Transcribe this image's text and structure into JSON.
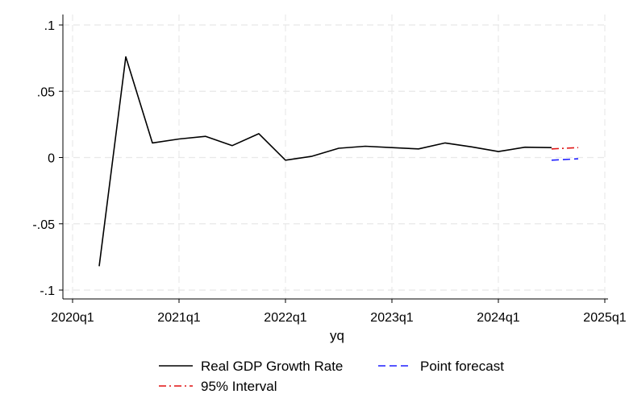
{
  "chart_data": {
    "type": "line",
    "xlabel": "yq",
    "ylabel": "",
    "x_ticks": [
      "2020q1",
      "2021q1",
      "2022q1",
      "2023q1",
      "2024q1",
      "2025q1"
    ],
    "y_ticks": [
      ".1",
      ".05",
      "0",
      "-.05",
      "-.1"
    ],
    "y_tick_values": [
      0.1,
      0.05,
      0,
      -0.05,
      -0.1
    ],
    "xlim": [
      "2020q1",
      "2025q1"
    ],
    "ylim": [
      -0.1,
      0.1
    ],
    "grid": true,
    "legend_position": "bottom",
    "series": [
      {
        "name": "Real GDP Growth Rate",
        "color": "#000000",
        "style": "solid",
        "x": [
          "2020q2",
          "2020q3",
          "2020q4",
          "2021q1",
          "2021q2",
          "2021q3",
          "2021q4",
          "2022q1",
          "2022q2",
          "2022q3",
          "2022q4",
          "2023q1",
          "2023q2",
          "2023q3",
          "2023q4",
          "2024q1",
          "2024q2",
          "2024q3"
        ],
        "values": [
          -0.082,
          0.076,
          0.011,
          0.014,
          0.016,
          0.009,
          0.018,
          -0.002,
          0.001,
          0.007,
          0.0085,
          0.0075,
          0.0065,
          0.011,
          0.008,
          0.0045,
          0.0078,
          0.0075
        ]
      },
      {
        "name": "Point forecast",
        "color": "#1f1fff",
        "style": "dashed",
        "x": [
          "2024q3",
          "2024q4"
        ],
        "values": [
          -0.002,
          -0.001
        ]
      },
      {
        "name": "95% Interval",
        "color": "#e01010",
        "style": "dashdot",
        "x": [
          "2024q3",
          "2024q4"
        ],
        "values": [
          0.0065,
          0.0075
        ]
      }
    ]
  }
}
